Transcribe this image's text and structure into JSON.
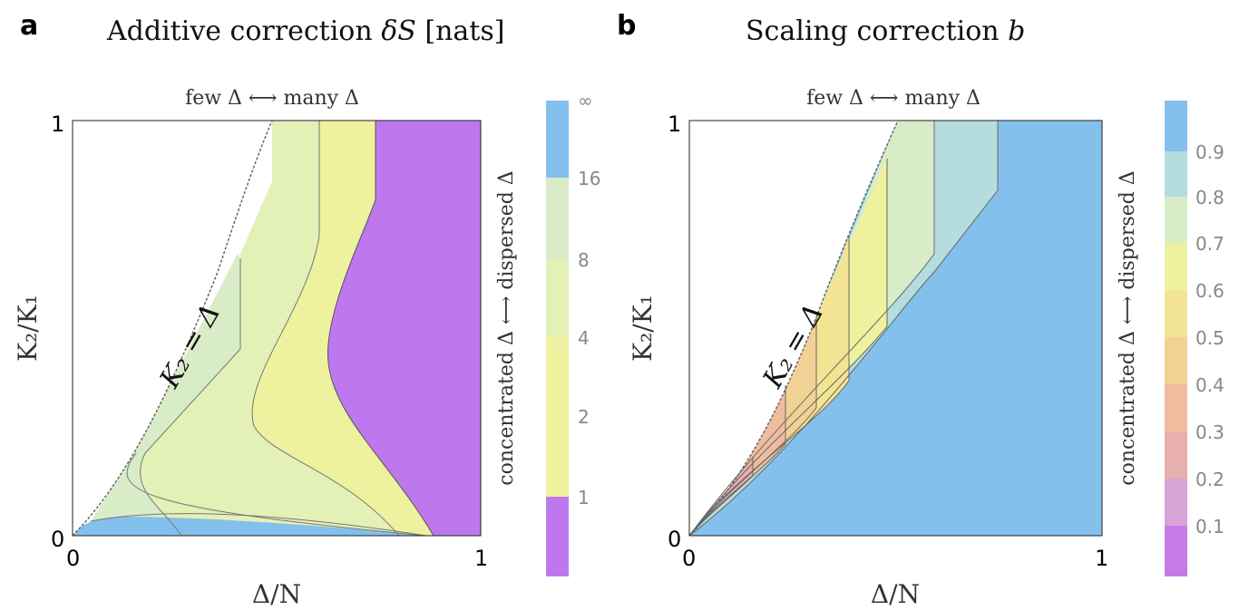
{
  "panel_a": {
    "letter": "a",
    "title_main": "Additive correction ",
    "title_symbol": "δS",
    "title_unit": " [nats]",
    "top_label": "few Δ ⟷ many Δ",
    "right_label": "concentrated Δ ⟷ dispersed Δ",
    "y_label": "K₂/K₁",
    "x_label": "Δ/N",
    "diag_label": "K₂ = Δ",
    "x_ticks": [
      "0",
      "1"
    ],
    "y_ticks": [
      "0",
      "1"
    ]
  },
  "panel_b": {
    "letter": "b",
    "title_main": "Scaling correction ",
    "title_symbol": "b",
    "top_label": "few Δ ⟷ many Δ",
    "right_label": "concentrated Δ ⟷ dispersed Δ",
    "y_label": "K₂/K₁",
    "x_label": "Δ/N",
    "diag_label": "K₂ = Δ",
    "x_ticks": [
      "0",
      "1"
    ],
    "y_ticks": [
      "0",
      "1"
    ]
  },
  "colors": {
    "purple": "#bf77ee",
    "yellow1": "#eef19e",
    "yellow2": "#e3f0b6",
    "green": "#d8ecc8",
    "blue": "#84c0ec",
    "lightblue": "#b5dde0",
    "gold": "#f2e492",
    "orange": "#f2d195",
    "salmon": "#efbc9e",
    "rose": "#e7afae",
    "pink": "#d8a4d6",
    "violet": "#c67ae8"
  },
  "chart_data": [
    {
      "type": "heatmap",
      "title": "Additive correction δS [nats]",
      "xlabel": "Δ/N",
      "ylabel": "K₂/K₁",
      "xlim": [
        0,
        1
      ],
      "ylim": [
        0,
        1
      ],
      "colorbar": {
        "ticks": [
          "1",
          "2",
          "4",
          "8",
          "16",
          "∞"
        ],
        "bins": [
          {
            "range": "<1",
            "color": "#bf77ee"
          },
          {
            "range": "1-2",
            "color": "#eef19e"
          },
          {
            "range": "2-4",
            "color": "#eef19e"
          },
          {
            "range": "4-8",
            "color": "#e3f0b6"
          },
          {
            "range": "8-16",
            "color": "#d8ecc8"
          },
          {
            "range": "16-∞",
            "color": "#84c0ec"
          }
        ]
      },
      "annotations": [
        "few Δ ⟷ many Δ",
        "concentrated Δ ⟷ dispersed Δ",
        "K₂ = Δ"
      ],
      "boundary_curve": {
        "x": [
          0.0,
          0.1,
          0.2,
          0.3,
          0.4,
          0.5
        ],
        "y": [
          0.0,
          0.17,
          0.44,
          0.72,
          0.93,
          1.0
        ]
      }
    },
    {
      "type": "heatmap",
      "title": "Scaling correction b",
      "xlabel": "Δ/N",
      "ylabel": "K₂/K₁",
      "xlim": [
        0,
        1
      ],
      "ylim": [
        0,
        1
      ],
      "colorbar": {
        "ticks": [
          "0.1",
          "0.2",
          "0.3",
          "0.4",
          "0.5",
          "0.6",
          "0.7",
          "0.8",
          "0.9"
        ],
        "bins": [
          {
            "range": "<0.1",
            "color": "#c67ae8"
          },
          {
            "range": "0.1-0.2",
            "color": "#d8a4d6"
          },
          {
            "range": "0.2-0.3",
            "color": "#e7afae"
          },
          {
            "range": "0.3-0.4",
            "color": "#efbc9e"
          },
          {
            "range": "0.4-0.5",
            "color": "#f2d195"
          },
          {
            "range": "0.5-0.6",
            "color": "#f2e492"
          },
          {
            "range": "0.6-0.7",
            "color": "#eef19e"
          },
          {
            "range": "0.7-0.8",
            "color": "#d8ecc8"
          },
          {
            "range": "0.8-0.9",
            "color": "#b5dde0"
          },
          {
            "range": ">0.9",
            "color": "#84c0ec"
          }
        ]
      },
      "annotations": [
        "few Δ ⟷ many Δ",
        "concentrated Δ ⟷ dispersed Δ",
        "K₂ = Δ"
      ],
      "boundary_curve": {
        "x": [
          0.0,
          0.1,
          0.2,
          0.3,
          0.4,
          0.5
        ],
        "y": [
          0.0,
          0.17,
          0.44,
          0.72,
          0.93,
          1.0
        ]
      }
    }
  ]
}
